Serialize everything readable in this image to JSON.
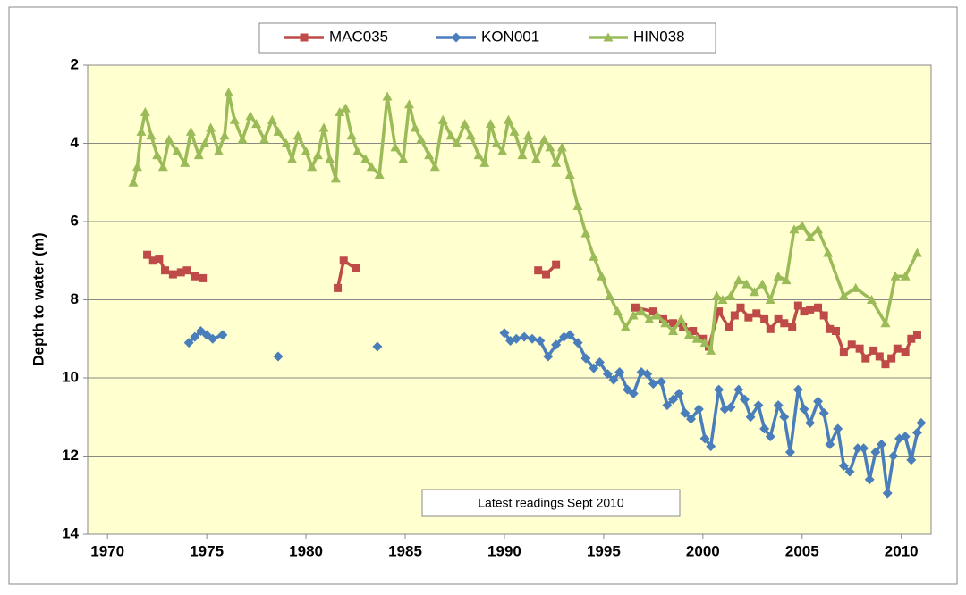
{
  "chart_data": {
    "type": "line",
    "y_label": "Depth to water  (m)",
    "annotation": "Latest readings  Sept 2010",
    "xlim": [
      1969,
      2011.5
    ],
    "xticks": [
      1970,
      1975,
      1980,
      1985,
      1990,
      1995,
      2000,
      2005,
      2010
    ],
    "ylim": [
      2,
      14
    ],
    "yticks": [
      2,
      4,
      6,
      8,
      10,
      12,
      14
    ],
    "y_inverted": true,
    "grid": true,
    "legend": "top",
    "background": "#ffffd0",
    "series": [
      {
        "name": "MAC035",
        "color": "#be4b48",
        "marker": "square",
        "x": [
          1972.0,
          1972.3,
          1972.6,
          1972.9,
          1973.3,
          1973.7,
          1974.0,
          1974.4,
          1974.8,
          null,
          1981.6,
          1981.9,
          1982.5,
          null,
          1991.7,
          1992.1,
          1992.6,
          null,
          1996.6,
          1997.5,
          1998.0,
          1998.5,
          1999.0,
          1999.5,
          2000.0,
          2000.3,
          2000.8,
          2001.3,
          2001.6,
          2001.9,
          2002.3,
          2002.7,
          2003.1,
          2003.4,
          2003.8,
          2004.1,
          2004.5,
          2004.8,
          2005.1,
          2005.4,
          2005.8,
          2006.1,
          2006.4,
          2006.7,
          2007.1,
          2007.5,
          2007.9,
          2008.2,
          2008.6,
          2008.9,
          2009.2,
          2009.5,
          2009.8,
          2010.2,
          2010.5,
          2010.8
        ],
        "values": [
          6.85,
          7.0,
          6.95,
          7.25,
          7.35,
          7.3,
          7.25,
          7.4,
          7.45,
          null,
          7.7,
          7.0,
          7.2,
          null,
          7.25,
          7.35,
          7.1,
          null,
          8.2,
          8.3,
          8.5,
          8.6,
          8.7,
          8.8,
          9.0,
          9.2,
          8.3,
          8.7,
          8.4,
          8.2,
          8.45,
          8.35,
          8.5,
          8.75,
          8.5,
          8.6,
          8.7,
          8.15,
          8.3,
          8.25,
          8.2,
          8.4,
          8.75,
          8.8,
          9.35,
          9.15,
          9.25,
          9.5,
          9.3,
          9.45,
          9.65,
          9.5,
          9.25,
          9.35,
          9.0,
          8.9
        ]
      },
      {
        "name": "KON001",
        "color": "#4a7ebb",
        "marker": "diamond",
        "x": [
          1974.1,
          1974.4,
          1974.7,
          1975.0,
          1975.3,
          1975.8,
          null,
          1978.6,
          null,
          1983.6,
          null,
          1990.0,
          1990.3,
          1990.6,
          1991.0,
          1991.4,
          1991.8,
          1992.2,
          1992.6,
          1993.0,
          1993.3,
          1993.7,
          1994.1,
          1994.5,
          1994.8,
          1995.2,
          1995.5,
          1995.8,
          1996.2,
          1996.5,
          1996.9,
          1997.2,
          1997.5,
          1997.9,
          1998.2,
          1998.5,
          1998.8,
          1999.1,
          1999.4,
          1999.8,
          2000.1,
          2000.4,
          2000.8,
          2001.1,
          2001.4,
          2001.8,
          2002.1,
          2002.4,
          2002.8,
          2003.1,
          2003.4,
          2003.8,
          2004.1,
          2004.4,
          2004.8,
          2005.1,
          2005.4,
          2005.8,
          2006.1,
          2006.4,
          2006.8,
          2007.1,
          2007.4,
          2007.8,
          2008.1,
          2008.4,
          2008.7,
          2009.0,
          2009.3,
          2009.6,
          2009.9,
          2010.2,
          2010.5,
          2010.8,
          2011.0
        ],
        "values": [
          9.1,
          8.95,
          8.8,
          8.9,
          9.0,
          8.9,
          null,
          9.45,
          null,
          9.2,
          null,
          8.85,
          9.05,
          9.0,
          8.95,
          9.0,
          9.05,
          9.45,
          9.15,
          8.95,
          8.9,
          9.1,
          9.5,
          9.75,
          9.6,
          9.9,
          10.05,
          9.85,
          10.3,
          10.4,
          9.85,
          9.9,
          10.15,
          10.1,
          10.7,
          10.55,
          10.4,
          10.9,
          11.05,
          10.8,
          11.55,
          11.75,
          10.3,
          10.8,
          10.75,
          10.3,
          10.55,
          11.0,
          10.7,
          11.3,
          11.5,
          10.7,
          11.0,
          11.9,
          10.3,
          10.8,
          11.15,
          10.6,
          10.9,
          11.7,
          11.3,
          12.25,
          12.4,
          11.8,
          11.8,
          12.6,
          11.9,
          11.7,
          12.95,
          12.0,
          11.55,
          11.5,
          12.1,
          11.4,
          11.15
        ]
      },
      {
        "name": "HIN038",
        "color": "#9bbb59",
        "marker": "triangle",
        "x": [
          1971.3,
          1971.5,
          1971.7,
          1971.9,
          1972.2,
          1972.5,
          1972.8,
          1973.1,
          1973.5,
          1973.9,
          1974.2,
          1974.6,
          1974.9,
          1975.2,
          1975.6,
          1975.9,
          1976.1,
          1976.4,
          1976.8,
          1977.2,
          1977.5,
          1977.9,
          1978.3,
          1978.6,
          1979.0,
          1979.3,
          1979.6,
          1980.0,
          1980.3,
          1980.6,
          1980.9,
          1981.2,
          1981.5,
          1981.7,
          1982.0,
          1982.3,
          1982.6,
          1983.0,
          1983.3,
          1983.7,
          1984.1,
          1984.5,
          1984.9,
          1985.2,
          1985.5,
          1985.8,
          1986.2,
          1986.5,
          1986.9,
          1987.3,
          1987.6,
          1988.0,
          1988.3,
          1988.7,
          1989.0,
          1989.3,
          1989.6,
          1989.9,
          1990.2,
          1990.5,
          1990.9,
          1991.2,
          1991.6,
          1992.0,
          1992.3,
          1992.6,
          1992.9,
          1993.3,
          1993.7,
          1994.1,
          1994.5,
          1994.9,
          1995.3,
          1995.7,
          1996.1,
          1996.5,
          1996.9,
          1997.3,
          1997.7,
          1998.1,
          1998.5,
          1998.9,
          1999.3,
          1999.7,
          2000.1,
          2000.4,
          2000.7,
          2001.0,
          2001.4,
          2001.8,
          2002.2,
          2002.6,
          2003.0,
          2003.4,
          2003.8,
          2004.2,
          2004.6,
          2005.0,
          2005.4,
          2005.8,
          2006.3,
          2007.1,
          2007.7,
          2008.5,
          2009.2,
          2009.7,
          2010.2,
          2010.8
        ],
        "values": [
          5.0,
          4.6,
          3.7,
          3.2,
          3.8,
          4.3,
          4.6,
          3.9,
          4.2,
          4.5,
          3.7,
          4.3,
          4.0,
          3.6,
          4.2,
          3.8,
          2.7,
          3.4,
          3.9,
          3.3,
          3.5,
          3.9,
          3.4,
          3.7,
          4.0,
          4.4,
          3.8,
          4.2,
          4.6,
          4.3,
          3.6,
          4.4,
          4.9,
          3.2,
          3.1,
          3.8,
          4.2,
          4.4,
          4.6,
          4.8,
          2.8,
          4.1,
          4.4,
          3.0,
          3.6,
          3.9,
          4.3,
          4.6,
          3.4,
          3.8,
          4.0,
          3.5,
          3.8,
          4.3,
          4.5,
          3.5,
          4.0,
          4.2,
          3.4,
          3.7,
          4.3,
          3.8,
          4.4,
          3.9,
          4.1,
          4.5,
          4.1,
          4.8,
          5.6,
          6.3,
          6.9,
          7.4,
          7.9,
          8.3,
          8.7,
          8.4,
          8.3,
          8.5,
          8.4,
          8.6,
          8.8,
          8.5,
          8.9,
          9.0,
          9.1,
          9.3,
          7.9,
          8.0,
          7.9,
          7.5,
          7.6,
          7.8,
          7.6,
          8.0,
          7.4,
          7.5,
          6.2,
          6.1,
          6.4,
          6.2,
          6.8,
          7.9,
          7.7,
          8.0,
          8.6,
          7.4,
          7.4,
          6.8
        ]
      }
    ]
  }
}
